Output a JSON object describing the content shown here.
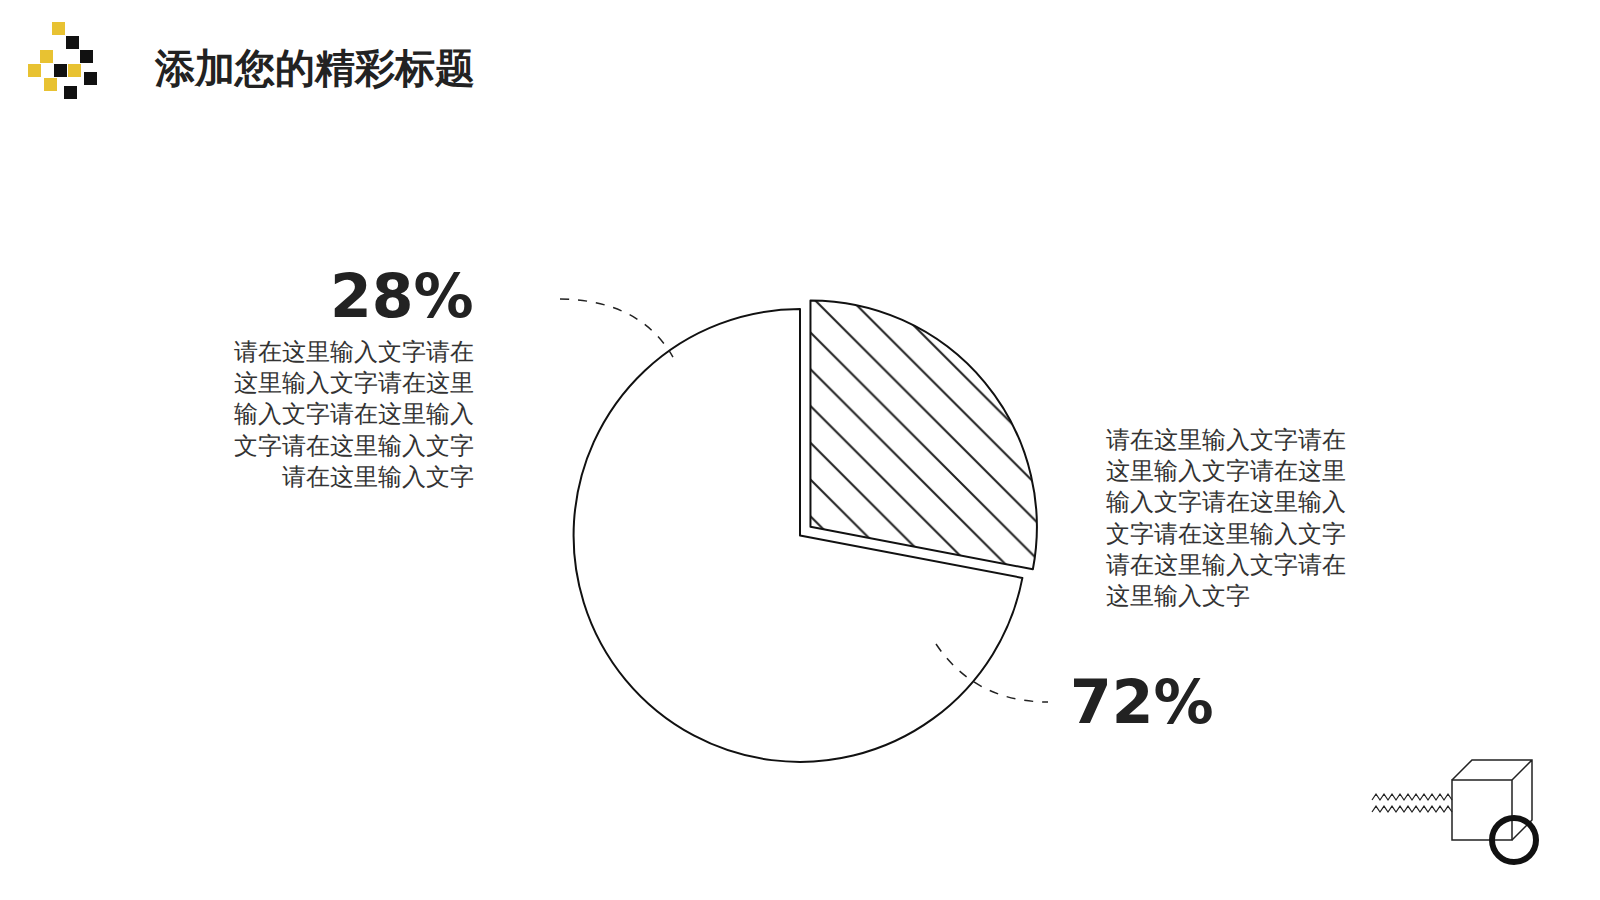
{
  "chart_data": {
    "type": "pie",
    "title": "添加您的精彩标题",
    "values": [
      28,
      72
    ],
    "value_labels": [
      "28%",
      "72%"
    ],
    "colors": [
      "#e8c232",
      "#ffffff"
    ],
    "data_labels": true,
    "annotations": [
      "请在这里输入文字请在这里输入文字请在这里输入文字请在这里输入文字请在这里输入文字请在这里输入文字",
      "请在这里输入文字请在这里输入文字请在这里输入文字请在这里输入文字请在这里输入文字请在这里输入文字请在这里输入文字"
    ]
  }
}
